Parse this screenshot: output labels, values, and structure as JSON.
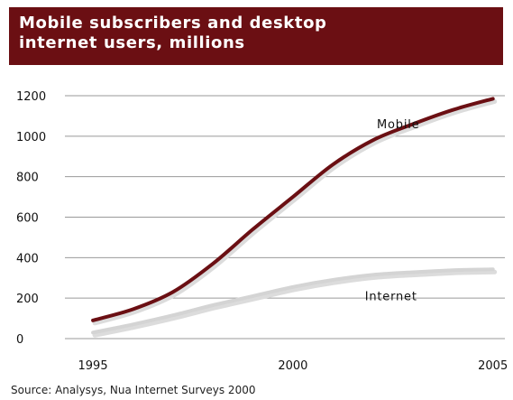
{
  "header": {
    "title": "Mobile subscribers and desktop internet users, millions"
  },
  "source": "Source: Analysys, Nua Internet Surveys 2000",
  "colors": {
    "title_bg": "#6b0f13",
    "mobile": "#6b0f13",
    "internet": "#d4d4d4",
    "shadow": "#dcdcdc",
    "grid": "#9a9a9a"
  },
  "chart_data": {
    "type": "line",
    "title": "Mobile subscribers and desktop internet users, millions",
    "xlabel": "",
    "ylabel": "",
    "xlim": [
      1994.3,
      2005.3
    ],
    "ylim": [
      0,
      1200
    ],
    "yticks": [
      0,
      200,
      400,
      600,
      800,
      1000,
      1200
    ],
    "xticks": [
      1995,
      2000,
      2005
    ],
    "grid": true,
    "series": [
      {
        "name": "Mobile",
        "x": [
          1995,
          1996,
          1997,
          1998,
          1999,
          2000,
          2001,
          2002,
          2003,
          2004,
          2005
        ],
        "values": [
          90,
          145,
          230,
          370,
          540,
          700,
          860,
          980,
          1060,
          1130,
          1185
        ]
      },
      {
        "name": "Internet",
        "x": [
          1995,
          1996,
          1997,
          1998,
          1999,
          2000,
          2001,
          2002,
          2003,
          2004,
          2005
        ],
        "values": [
          30,
          70,
          115,
          165,
          210,
          255,
          290,
          315,
          328,
          338,
          342
        ]
      }
    ]
  }
}
